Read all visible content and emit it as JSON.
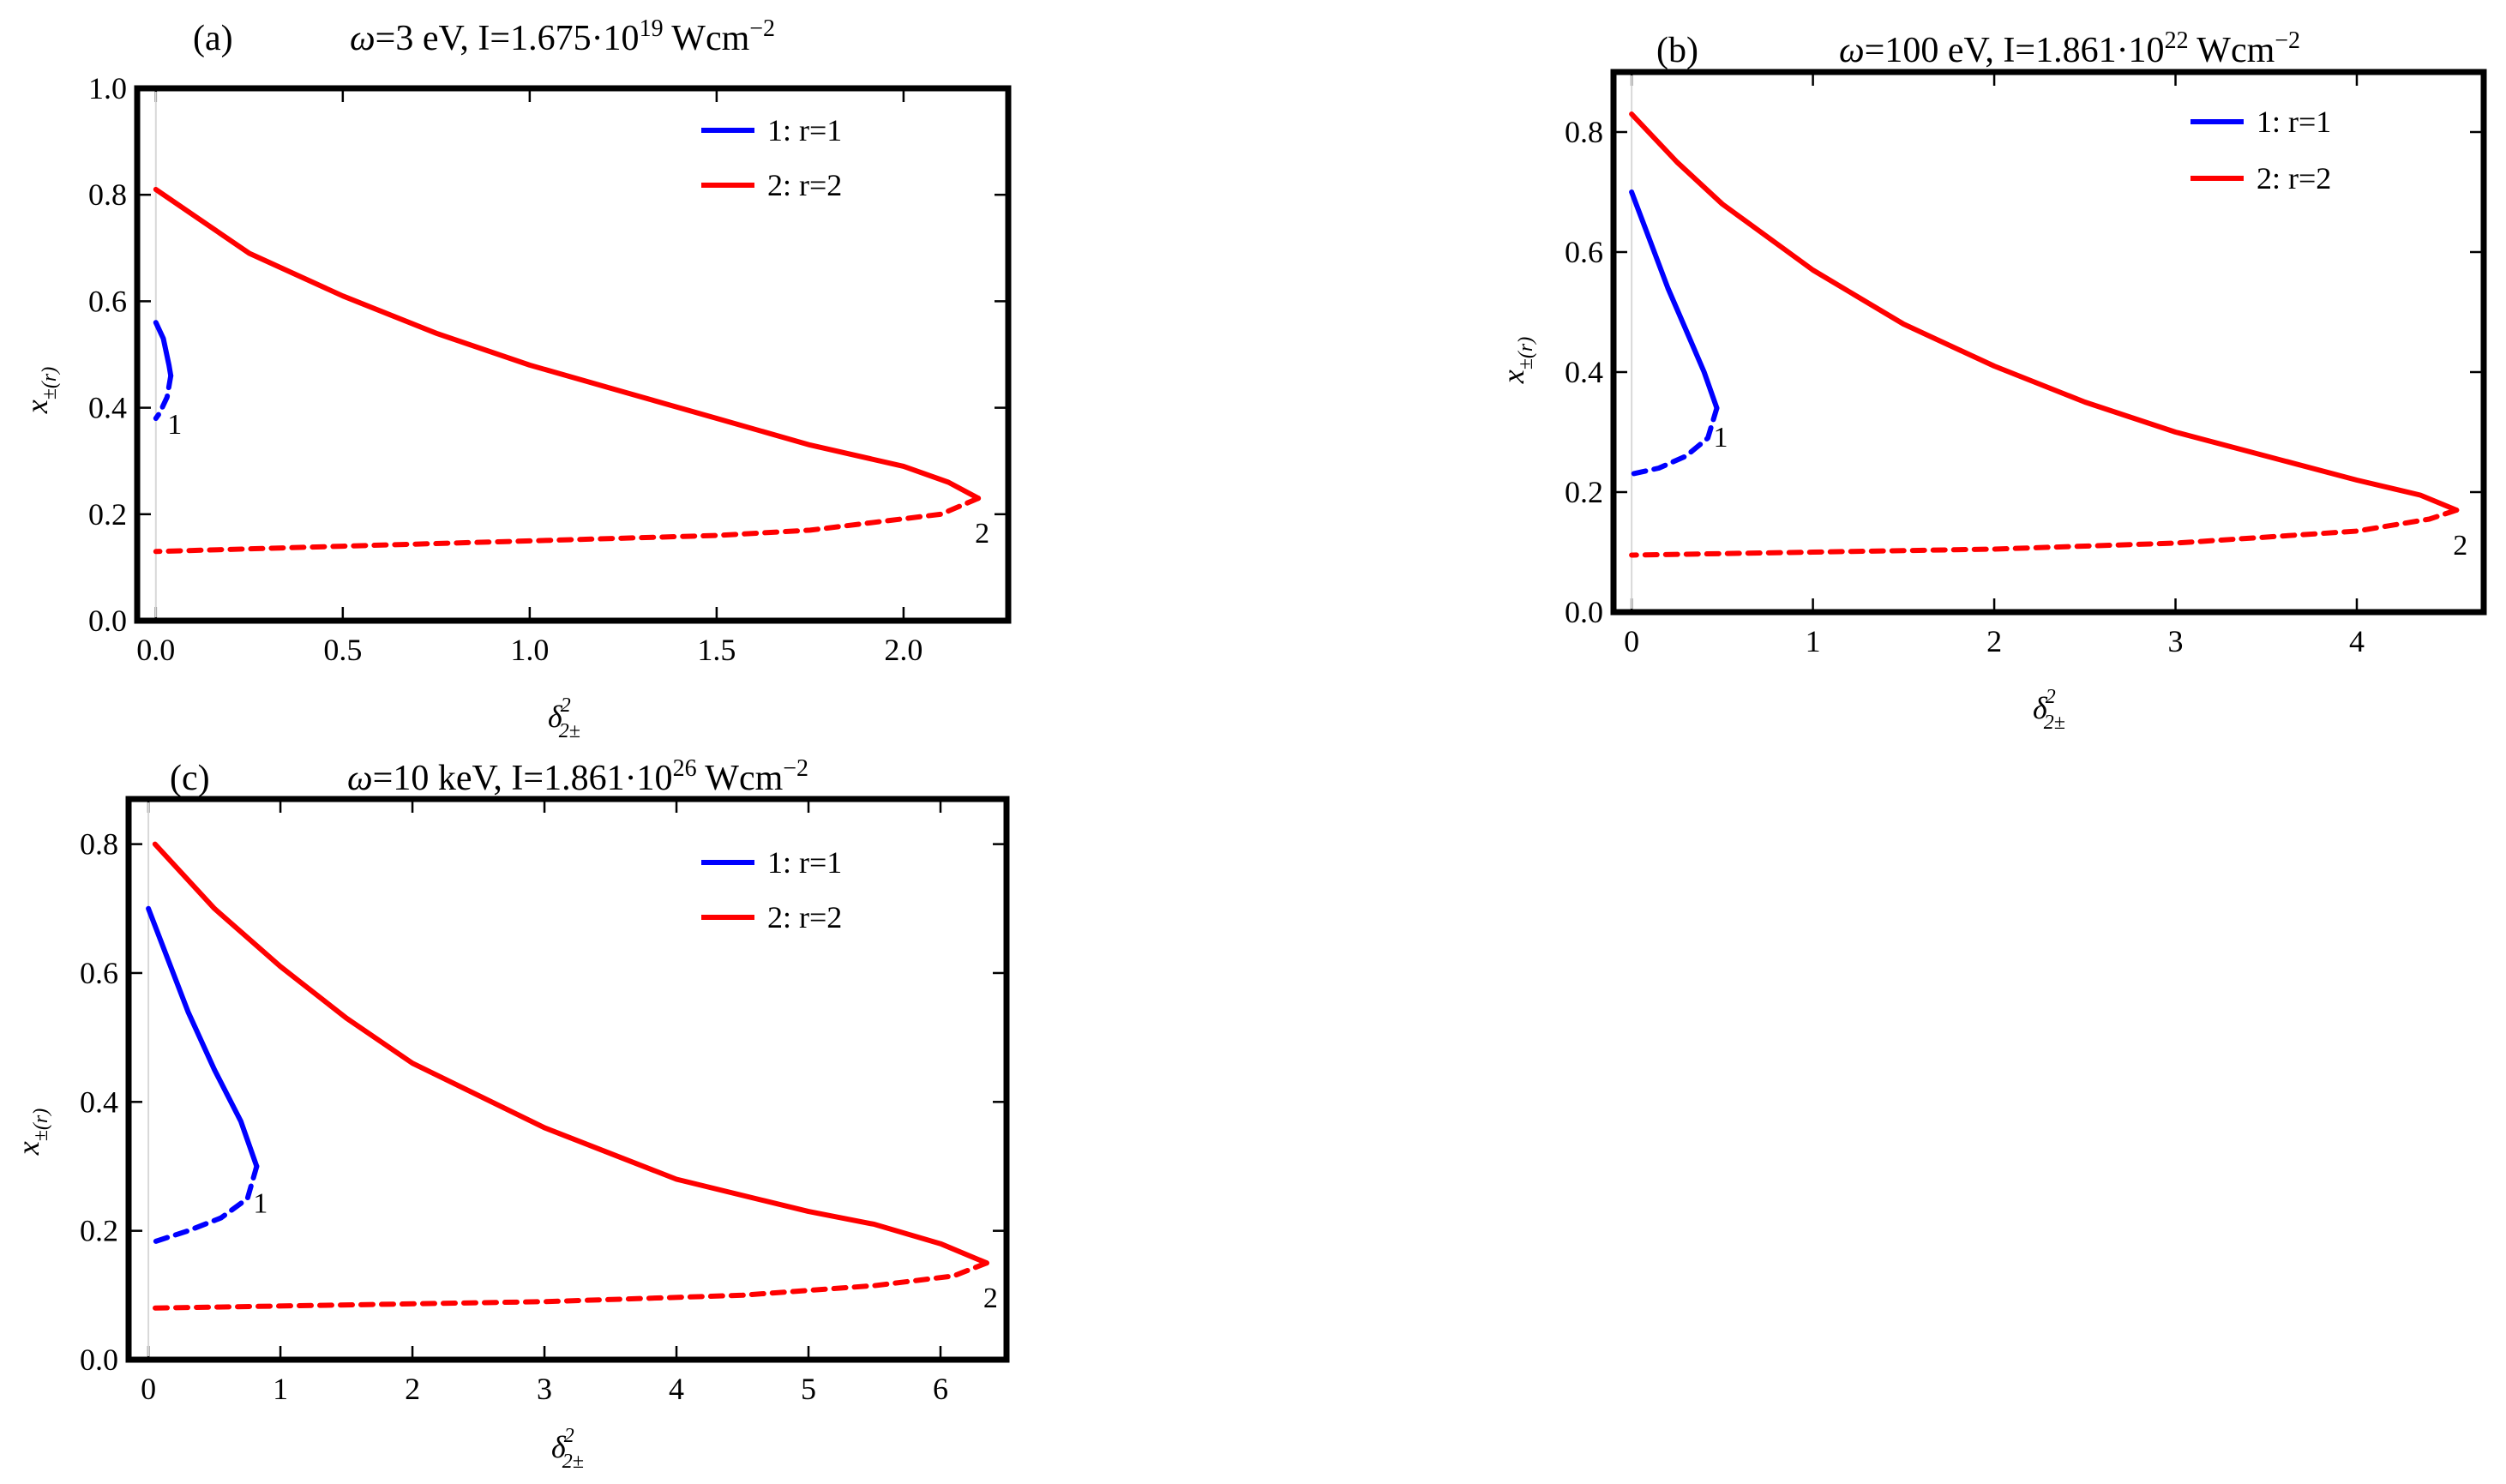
{
  "chart_data": [
    {
      "type": "line",
      "panel_label": "(a)",
      "title": {
        "omega": "ω",
        "main": "=3 eV, I=1.675·10",
        "exp": "19",
        "units": " Wcm",
        "units_exp": "−2"
      },
      "xlabel": {
        "base": "δ",
        "sup": "2",
        "sub": "2±"
      },
      "ylabel": {
        "base": "x",
        "sub": "±(r)"
      },
      "xlim": [
        -0.05,
        2.28
      ],
      "ylim": [
        0.0,
        1.0
      ],
      "xticks": [
        0.0,
        0.5,
        1.0,
        1.5,
        2.0
      ],
      "xtick_labels": [
        "0.0",
        "0.5",
        "1.0",
        "1.5",
        "2.0"
      ],
      "yticks": [
        0.0,
        0.2,
        0.4,
        0.6,
        0.8,
        1.0
      ],
      "ytick_labels": [
        "0.0",
        "0.2",
        "0.4",
        "0.6",
        "0.8",
        "1.0"
      ],
      "legend": {
        "position": "top-right",
        "entries": [
          {
            "label": "1: r=1",
            "color": "#0000ff"
          },
          {
            "label": "2: r=2",
            "color": "#ff0000"
          }
        ]
      },
      "series": [
        {
          "name": "1: r=1",
          "color": "#0000ff",
          "solid": [
            [
              0.0,
              0.56
            ],
            [
              0.02,
              0.53
            ],
            [
              0.035,
              0.48
            ],
            [
              0.04,
              0.46
            ]
          ],
          "dashed": [
            [
              0.04,
              0.46
            ],
            [
              0.03,
              0.42
            ],
            [
              0.01,
              0.39
            ],
            [
              0.0,
              0.38
            ]
          ],
          "end_label": "1",
          "end_point": [
            0.04,
            0.39
          ]
        },
        {
          "name": "2: r=2",
          "color": "#ff0000",
          "solid": [
            [
              0.0,
              0.81
            ],
            [
              0.25,
              0.69
            ],
            [
              0.5,
              0.61
            ],
            [
              0.75,
              0.54
            ],
            [
              1.0,
              0.48
            ],
            [
              1.25,
              0.43
            ],
            [
              1.5,
              0.38
            ],
            [
              1.75,
              0.33
            ],
            [
              2.0,
              0.29
            ],
            [
              2.12,
              0.26
            ],
            [
              2.2,
              0.23
            ]
          ],
          "dashed": [
            [
              2.2,
              0.23
            ],
            [
              2.1,
              0.2
            ],
            [
              1.75,
              0.17
            ],
            [
              1.5,
              0.16
            ],
            [
              1.0,
              0.15
            ],
            [
              0.5,
              0.14
            ],
            [
              0.0,
              0.13
            ]
          ],
          "end_label": "2",
          "end_point": [
            2.2,
            0.23
          ]
        }
      ]
    },
    {
      "type": "line",
      "panel_label": "(b)",
      "title": {
        "omega": "ω",
        "main": "=100 eV, I=1.861·10",
        "exp": "22",
        "units": " Wcm",
        "units_exp": "−2"
      },
      "xlabel": {
        "base": "δ",
        "sup": "2",
        "sub": "2±"
      },
      "ylabel": {
        "base": "x",
        "sub": "±(r)"
      },
      "xlim": [
        -0.1,
        4.7
      ],
      "ylim": [
        0.0,
        0.9
      ],
      "xticks": [
        0,
        1,
        2,
        3,
        4
      ],
      "xtick_labels": [
        "0",
        "1",
        "2",
        "3",
        "4"
      ],
      "yticks": [
        0.0,
        0.2,
        0.4,
        0.6,
        0.8
      ],
      "ytick_labels": [
        "0.0",
        "0.2",
        "0.4",
        "0.6",
        "0.8"
      ],
      "legend": {
        "position": "top-right",
        "entries": [
          {
            "label": "1: r=1",
            "color": "#0000ff"
          },
          {
            "label": "2: r=2",
            "color": "#ff0000"
          }
        ]
      },
      "series": [
        {
          "name": "1: r=1",
          "color": "#0000ff",
          "solid": [
            [
              0.0,
              0.7
            ],
            [
              0.1,
              0.62
            ],
            [
              0.2,
              0.54
            ],
            [
              0.3,
              0.47
            ],
            [
              0.4,
              0.4
            ],
            [
              0.47,
              0.34
            ]
          ],
          "dashed": [
            [
              0.47,
              0.34
            ],
            [
              0.42,
              0.29
            ],
            [
              0.3,
              0.26
            ],
            [
              0.15,
              0.24
            ],
            [
              0.0,
              0.23
            ]
          ],
          "end_label": "1",
          "end_point": [
            0.47,
            0.31
          ]
        },
        {
          "name": "2: r=2",
          "color": "#ff0000",
          "solid": [
            [
              0.0,
              0.83
            ],
            [
              0.25,
              0.75
            ],
            [
              0.5,
              0.68
            ],
            [
              1.0,
              0.57
            ],
            [
              1.5,
              0.48
            ],
            [
              2.0,
              0.41
            ],
            [
              2.5,
              0.35
            ],
            [
              3.0,
              0.3
            ],
            [
              3.5,
              0.26
            ],
            [
              4.0,
              0.22
            ],
            [
              4.35,
              0.195
            ],
            [
              4.55,
              0.17
            ]
          ],
          "dashed": [
            [
              4.55,
              0.17
            ],
            [
              4.4,
              0.155
            ],
            [
              4.0,
              0.135
            ],
            [
              3.0,
              0.115
            ],
            [
              2.0,
              0.105
            ],
            [
              1.0,
              0.1
            ],
            [
              0.0,
              0.095
            ]
          ],
          "end_label": "2",
          "end_point": [
            4.55,
            0.17
          ]
        }
      ]
    },
    {
      "type": "line",
      "panel_label": "(c)",
      "title": {
        "omega": "ω",
        "main": "=10 keV, I=1.861·10",
        "exp": "26",
        "units": " Wcm",
        "units_exp": "−2"
      },
      "xlabel": {
        "base": "δ",
        "sup": "2",
        "sub": "2±"
      },
      "ylabel": {
        "base": "x",
        "sub": "±(r)"
      },
      "xlim": [
        -0.15,
        6.5
      ],
      "ylim": [
        0.0,
        0.87
      ],
      "xticks": [
        0,
        1,
        2,
        3,
        4,
        5,
        6
      ],
      "xtick_labels": [
        "0",
        "1",
        "2",
        "3",
        "4",
        "5",
        "6"
      ],
      "yticks": [
        0.0,
        0.2,
        0.4,
        0.6,
        0.8
      ],
      "ytick_labels": [
        "0.0",
        "0.2",
        "0.4",
        "0.6",
        "0.8"
      ],
      "legend": {
        "position": "top-right",
        "entries": [
          {
            "label": "1: r=1",
            "color": "#0000ff"
          },
          {
            "label": "2: r=2",
            "color": "#ff0000"
          }
        ]
      },
      "series": [
        {
          "name": "1: r=1",
          "color": "#0000ff",
          "solid": [
            [
              0.0,
              0.7
            ],
            [
              0.15,
              0.62
            ],
            [
              0.3,
              0.54
            ],
            [
              0.5,
              0.45
            ],
            [
              0.7,
              0.37
            ],
            [
              0.82,
              0.3
            ]
          ],
          "dashed": [
            [
              0.82,
              0.3
            ],
            [
              0.75,
              0.25
            ],
            [
              0.55,
              0.22
            ],
            [
              0.3,
              0.2
            ],
            [
              0.0,
              0.18
            ]
          ],
          "end_label": "1",
          "end_point": [
            0.82,
            0.26
          ]
        },
        {
          "name": "2: r=2",
          "color": "#ff0000",
          "solid": [
            [
              0.05,
              0.8
            ],
            [
              0.5,
              0.7
            ],
            [
              1.0,
              0.61
            ],
            [
              1.5,
              0.53
            ],
            [
              2.0,
              0.46
            ],
            [
              3.0,
              0.36
            ],
            [
              4.0,
              0.28
            ],
            [
              5.0,
              0.23
            ],
            [
              5.5,
              0.21
            ],
            [
              6.0,
              0.18
            ],
            [
              6.35,
              0.15
            ]
          ],
          "dashed": [
            [
              6.35,
              0.15
            ],
            [
              6.1,
              0.13
            ],
            [
              5.5,
              0.115
            ],
            [
              4.5,
              0.1
            ],
            [
              3.0,
              0.09
            ],
            [
              1.5,
              0.085
            ],
            [
              0.0,
              0.08
            ]
          ],
          "end_label": "2",
          "end_point": [
            6.35,
            0.15
          ]
        }
      ]
    }
  ]
}
